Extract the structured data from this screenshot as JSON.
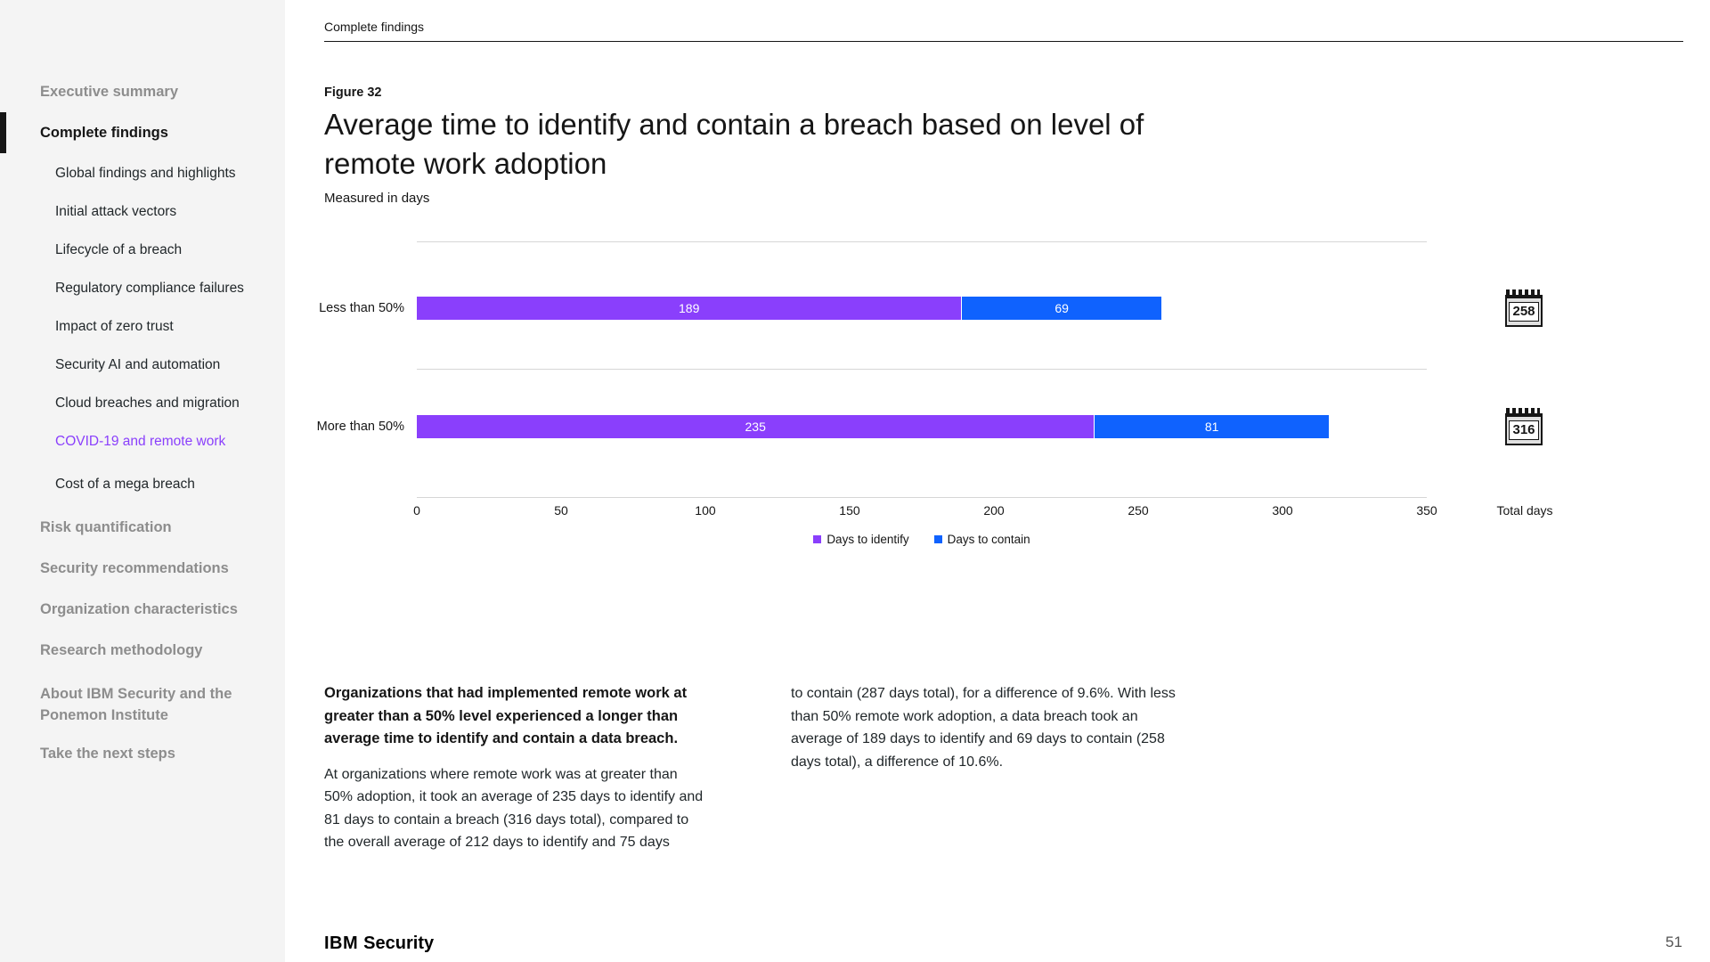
{
  "page": {
    "running_header": "Complete findings",
    "figure_label": "Figure 32",
    "title": "Average time to identify and contain a breach based on level of remote work adoption",
    "subtitle": "Measured in days",
    "page_number": "51",
    "brand_ibm": "IBM",
    "brand_security": "Security"
  },
  "sidebar": {
    "items": [
      {
        "label": "Executive summary"
      },
      {
        "label": "Complete findings"
      },
      {
        "label": "Global findings and highlights"
      },
      {
        "label": "Initial attack vectors"
      },
      {
        "label": "Lifecycle of a breach"
      },
      {
        "label": "Regulatory compliance failures"
      },
      {
        "label": "Impact of zero trust"
      },
      {
        "label": "Security AI and automation"
      },
      {
        "label": "Cloud breaches and migration"
      },
      {
        "label": "COVID-19 and remote work"
      },
      {
        "label": "Cost of a mega breach"
      },
      {
        "label": "Risk quantification"
      },
      {
        "label": "Security recommendations"
      },
      {
        "label": "Organization characteristics"
      },
      {
        "label": "Research methodology"
      },
      {
        "label": "About IBM Security and the Ponemon Institute"
      },
      {
        "label": "Take the next steps"
      }
    ]
  },
  "chart_data": {
    "type": "bar",
    "orientation": "horizontal",
    "stacked": true,
    "title": "Average time to identify and contain a breach based on level of remote work adoption",
    "subtitle": "Measured in days",
    "categories": [
      "Less than 50%",
      "More than 50%"
    ],
    "series": [
      {
        "name": "Days to identify",
        "color": "#8a3ffc",
        "values": [
          189,
          235
        ]
      },
      {
        "name": "Days to contain",
        "color": "#0f62fe",
        "values": [
          69,
          81
        ]
      }
    ],
    "totals": [
      258,
      316
    ],
    "totals_label": "Total days",
    "x_ticks": [
      0,
      50,
      100,
      150,
      200,
      250,
      300,
      350
    ],
    "xlim": [
      0,
      350
    ],
    "grid": "horizontal row separators on",
    "legend_position": "bottom-center"
  },
  "body": {
    "lead": "Organizations that had implemented remote work at greater than a 50% level experienced a longer than average time to identify and contain a data breach.",
    "para_left": "At organizations where remote work was at greater than 50% adoption, it took an average of 235 days to identify and 81 days to contain a breach (316 days total), compared to the overall average of 212 days to identify and 75 days",
    "para_right": "to contain (287 days total), for a difference of 9.6%. With less than 50% remote work adoption, a data breach took an average of 189 days to identify and 69 days to contain (258 days total), a difference of 10.6%."
  }
}
